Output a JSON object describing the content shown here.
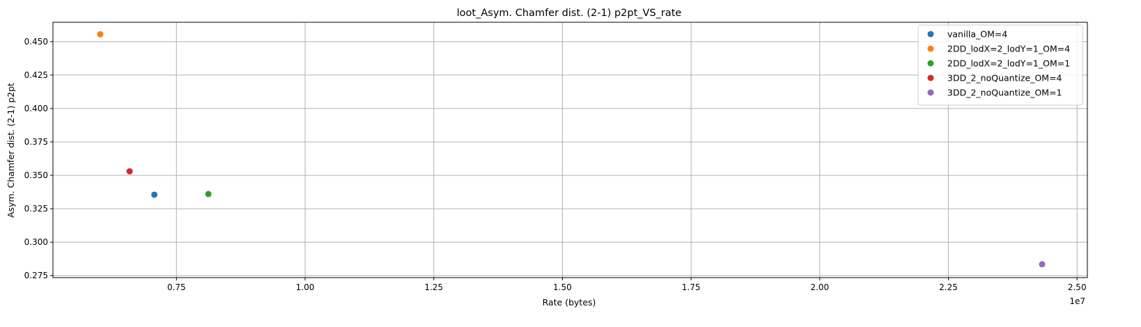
{
  "chart_data": {
    "type": "scatter",
    "title": "loot_Asym. Chamfer dist. (2-1) p2pt_VS_rate",
    "xlabel": "Rate (bytes)",
    "ylabel": "Asym. Chamfer dist. (2-1) p2pt",
    "x_offset_label": "1e7",
    "xlim": [
      0.51,
      2.52
    ],
    "ylim": [
      0.2735,
      0.4645
    ],
    "x_ticks": [
      0.75,
      1.0,
      1.25,
      1.5,
      1.75,
      2.0,
      2.25,
      2.5
    ],
    "x_tick_labels": [
      "0.75",
      "1.00",
      "1.25",
      "1.50",
      "1.75",
      "2.00",
      "2.25",
      "2.50"
    ],
    "y_ticks": [
      0.275,
      0.3,
      0.325,
      0.35,
      0.375,
      0.4,
      0.425,
      0.45
    ],
    "y_tick_labels": [
      "0.275",
      "0.300",
      "0.325",
      "0.350",
      "0.375",
      "0.400",
      "0.425",
      "0.450"
    ],
    "grid": true,
    "legend_position": "top-right",
    "series": [
      {
        "name": "vanilla_OM=4",
        "color": "#1f77b4",
        "x": [
          0.707
        ],
        "y": [
          0.3355
        ]
      },
      {
        "name": "2DD_lodX=2_lodY=1_OM=4",
        "color": "#ff7f0e",
        "x": [
          0.602
        ],
        "y": [
          0.4555
        ]
      },
      {
        "name": "2DD_lodX=2_lodY=1_OM=1",
        "color": "#2ca02c",
        "x": [
          0.812
        ],
        "y": [
          0.336
        ]
      },
      {
        "name": "3DD_2_noQuantize_OM=4",
        "color": "#d62728",
        "x": [
          0.659
        ],
        "y": [
          0.353
        ]
      },
      {
        "name": "3DD_2_noQuantize_OM=1",
        "color": "#9467bd",
        "x": [
          2.432
        ],
        "y": [
          0.2835
        ]
      }
    ]
  }
}
